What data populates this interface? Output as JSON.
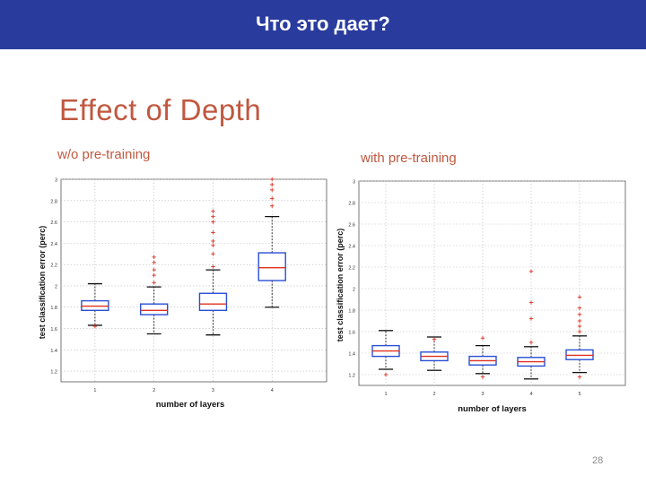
{
  "header": {
    "title": "Что это дает?"
  },
  "slide": {
    "title": "Effect of Depth",
    "page_number": "28",
    "accent_color": "#c0583f",
    "header_color": "#2a3b9e"
  },
  "chart_data": [
    {
      "type": "box",
      "title": "w/o pre-training",
      "xlabel": "number of layers",
      "ylabel": "test classification error (perc)",
      "categories": [
        "1",
        "2",
        "3",
        "4"
      ],
      "ylim": [
        1.1,
        3.0
      ],
      "yticks": [
        "1.2",
        "1.4",
        "1.6",
        "1.8",
        "2",
        "2.2",
        "2.4",
        "2.6",
        "2.8",
        "3"
      ],
      "box_color": "#2a4fd6",
      "median_color": "#e03020",
      "boxes": [
        {
          "whisker_low": 1.63,
          "q1": 1.77,
          "median": 1.81,
          "q3": 1.86,
          "whisker_high": 2.02,
          "outliers": [
            1.62
          ]
        },
        {
          "whisker_low": 1.55,
          "q1": 1.73,
          "median": 1.77,
          "q3": 1.83,
          "whisker_high": 1.99,
          "outliers": [
            2.03,
            2.1,
            2.15,
            2.22,
            2.27
          ]
        },
        {
          "whisker_low": 1.54,
          "q1": 1.77,
          "median": 1.83,
          "q3": 1.93,
          "whisker_high": 2.15,
          "outliers": [
            2.18,
            2.3,
            2.38,
            2.42,
            2.5,
            2.6,
            2.65,
            2.7
          ]
        },
        {
          "whisker_low": 1.8,
          "q1": 2.05,
          "median": 2.17,
          "q3": 2.31,
          "whisker_high": 2.65,
          "outliers": [
            2.75,
            2.82,
            2.9,
            2.95,
            3.0
          ]
        }
      ]
    },
    {
      "type": "box",
      "title": "with pre-training",
      "xlabel": "number of layers",
      "ylabel": "test classification error (perc)",
      "categories": [
        "1",
        "2",
        "3",
        "4",
        "5"
      ],
      "ylim": [
        1.1,
        3.0
      ],
      "yticks": [
        "1.2",
        "1.4",
        "1.6",
        "1.8",
        "2",
        "2.2",
        "2.4",
        "2.6",
        "2.8",
        "3"
      ],
      "box_color": "#2a4fd6",
      "median_color": "#e03020",
      "boxes": [
        {
          "whisker_low": 1.25,
          "q1": 1.37,
          "median": 1.42,
          "q3": 1.47,
          "whisker_high": 1.61,
          "outliers": [
            1.2
          ]
        },
        {
          "whisker_low": 1.24,
          "q1": 1.33,
          "median": 1.37,
          "q3": 1.41,
          "whisker_high": 1.55,
          "outliers": [
            1.53
          ]
        },
        {
          "whisker_low": 1.21,
          "q1": 1.29,
          "median": 1.33,
          "q3": 1.37,
          "whisker_high": 1.47,
          "outliers": [
            1.54,
            1.18
          ]
        },
        {
          "whisker_low": 1.16,
          "q1": 1.28,
          "median": 1.32,
          "q3": 1.36,
          "whisker_high": 1.46,
          "outliers": [
            1.5,
            1.72,
            1.87,
            2.16
          ]
        },
        {
          "whisker_low": 1.22,
          "q1": 1.34,
          "median": 1.38,
          "q3": 1.43,
          "whisker_high": 1.56,
          "outliers": [
            1.6,
            1.65,
            1.7,
            1.76,
            1.82,
            1.92,
            1.18
          ]
        }
      ]
    }
  ]
}
